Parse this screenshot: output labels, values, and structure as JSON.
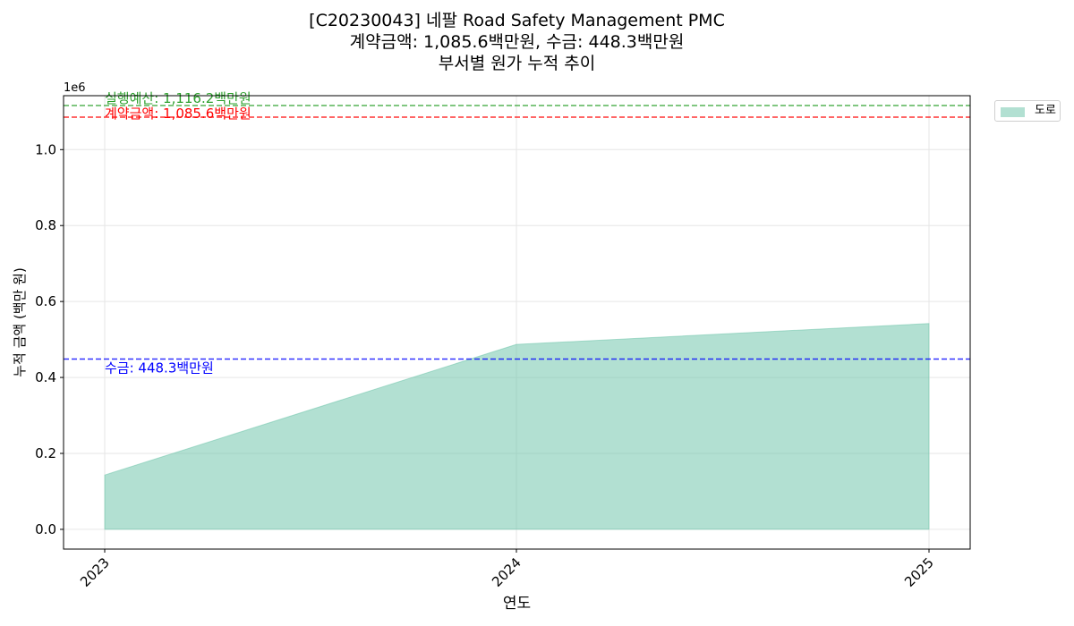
{
  "title": {
    "line1": "[C20230043] 네팔 Road Safety Management PMC",
    "line2": "계약금액: 1,085.6백만원, 수금: 448.3백만원",
    "line3": "부서별 원가 누적 추이"
  },
  "chart_data": {
    "type": "area",
    "x": [
      "2023",
      "2024",
      "2025"
    ],
    "series": [
      {
        "name": "도로",
        "values": [
          143000,
          487000,
          542000
        ],
        "color": "#66c2a5"
      }
    ],
    "xlabel": "연도",
    "ylabel": "누적 금액 (백만 원)",
    "y_scale_label": "1e6",
    "yticks": [
      "0.0",
      "0.2",
      "0.4",
      "0.6",
      "0.8",
      "1.0"
    ],
    "ylim": [
      -52000,
      1142000
    ],
    "grid": true,
    "legend_placement": "outside-top-right",
    "reference_lines": [
      {
        "label": "실행예산: 1,116.2백만원",
        "value": 1116200,
        "color": "#2ca02c"
      },
      {
        "label": "계약금액: 1,085.6백만원",
        "value": 1085600,
        "color": "#ff0000"
      },
      {
        "label": "수금: 448.3백만원",
        "value": 448300,
        "color": "#0000ff"
      }
    ]
  }
}
